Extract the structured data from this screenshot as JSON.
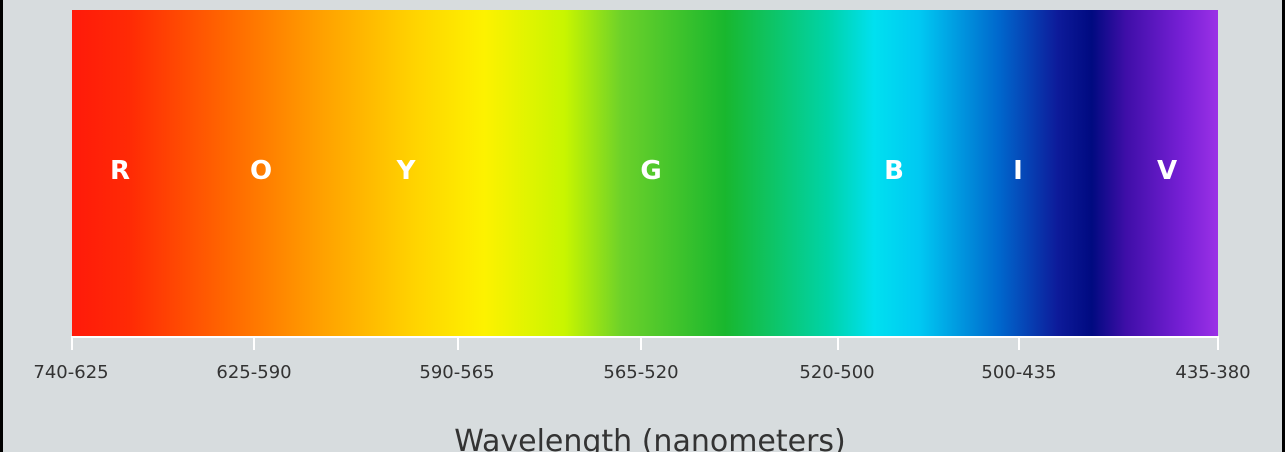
{
  "colors": {
    "background": "#d7dcde",
    "frame": "#000000",
    "axis": "#ffffff",
    "text": "#333333",
    "letters": "#ffffff",
    "gradient": [
      "#ff1a0a",
      "#ff2a05",
      "#ff6a00",
      "#ffa200",
      "#ffd400",
      "#fdf200",
      "#c8f500",
      "#6cd12a",
      "#19b72e",
      "#00d3a8",
      "#00e0f0",
      "#00c8f2",
      "#0066cc",
      "#0d1b9a",
      "#000a80",
      "#3f0ea8",
      "#7820d6",
      "#9b31e6"
    ]
  },
  "bands": [
    {
      "letter": "R",
      "range": "740-625"
    },
    {
      "letter": "O",
      "range": "625-590"
    },
    {
      "letter": "Y",
      "range": "590-565"
    },
    {
      "letter": "G",
      "range": "565-520"
    },
    {
      "letter": "B",
      "range": "520-500"
    },
    {
      "letter": "I",
      "range": "500-435"
    },
    {
      "letter": "V",
      "range": "435-380"
    }
  ],
  "axis": {
    "title": "Wavelength (nanometers)"
  }
}
